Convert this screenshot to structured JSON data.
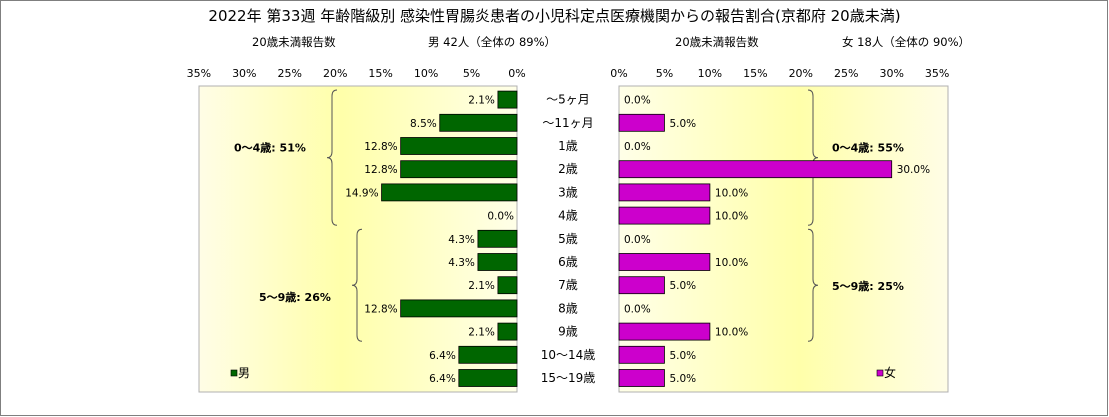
{
  "chart_data": {
    "type": "bar",
    "title": "2022年 第33週  年齢階級別 感染性胃腸炎患者の小児科定点医療機関からの報告割合(京都府 20歳未満)",
    "categories": [
      "～5ヶ月",
      "～11ヶ月",
      "1歳",
      "2歳",
      "3歳",
      "4歳",
      "5歳",
      "6歳",
      "7歳",
      "8歳",
      "9歳",
      "10～14歳",
      "15～19歳"
    ],
    "left_panel": {
      "header_label": "20歳未満報告数",
      "header_summary": "男  42人（全体の  89%）",
      "ticks": [
        "35%",
        "30%",
        "25%",
        "20%",
        "15%",
        "10%",
        "5%",
        "0%"
      ],
      "xlim": [
        0,
        35
      ],
      "legend": "男",
      "annotations": [
        "0～4歳: 51%",
        "5～9歳: 26%"
      ]
    },
    "right_panel": {
      "header_label": "20歳未満報告数",
      "header_summary": "女  18人（全体の  90%）",
      "ticks": [
        "0%",
        "5%",
        "10%",
        "15%",
        "20%",
        "25%",
        "30%",
        "35%"
      ],
      "xlim": [
        0,
        35
      ],
      "legend": "女",
      "annotations": [
        "0～4歳: 55%",
        "5～9歳: 25%"
      ]
    },
    "series": [
      {
        "name": "男",
        "color": "#006600",
        "values": [
          2.1,
          8.5,
          12.8,
          12.8,
          14.9,
          0.0,
          4.3,
          4.3,
          2.1,
          12.8,
          2.1,
          6.4,
          6.4
        ],
        "labels": [
          "2.1%",
          "8.5%",
          "12.8%",
          "12.8%",
          "14.9%",
          "0.0%",
          "4.3%",
          "4.3%",
          "2.1%",
          "12.8%",
          "2.1%",
          "6.4%",
          "6.4%"
        ]
      },
      {
        "name": "女",
        "color": "#cc00cc",
        "values": [
          0.0,
          5.0,
          0.0,
          30.0,
          10.0,
          10.0,
          0.0,
          10.0,
          5.0,
          0.0,
          10.0,
          5.0,
          5.0
        ],
        "labels": [
          "0.0%",
          "5.0%",
          "0.0%",
          "30.0%",
          "10.0%",
          "10.0%",
          "0.0%",
          "10.0%",
          "5.0%",
          "0.0%",
          "10.0%",
          "5.0%",
          "5.0%"
        ]
      }
    ]
  }
}
